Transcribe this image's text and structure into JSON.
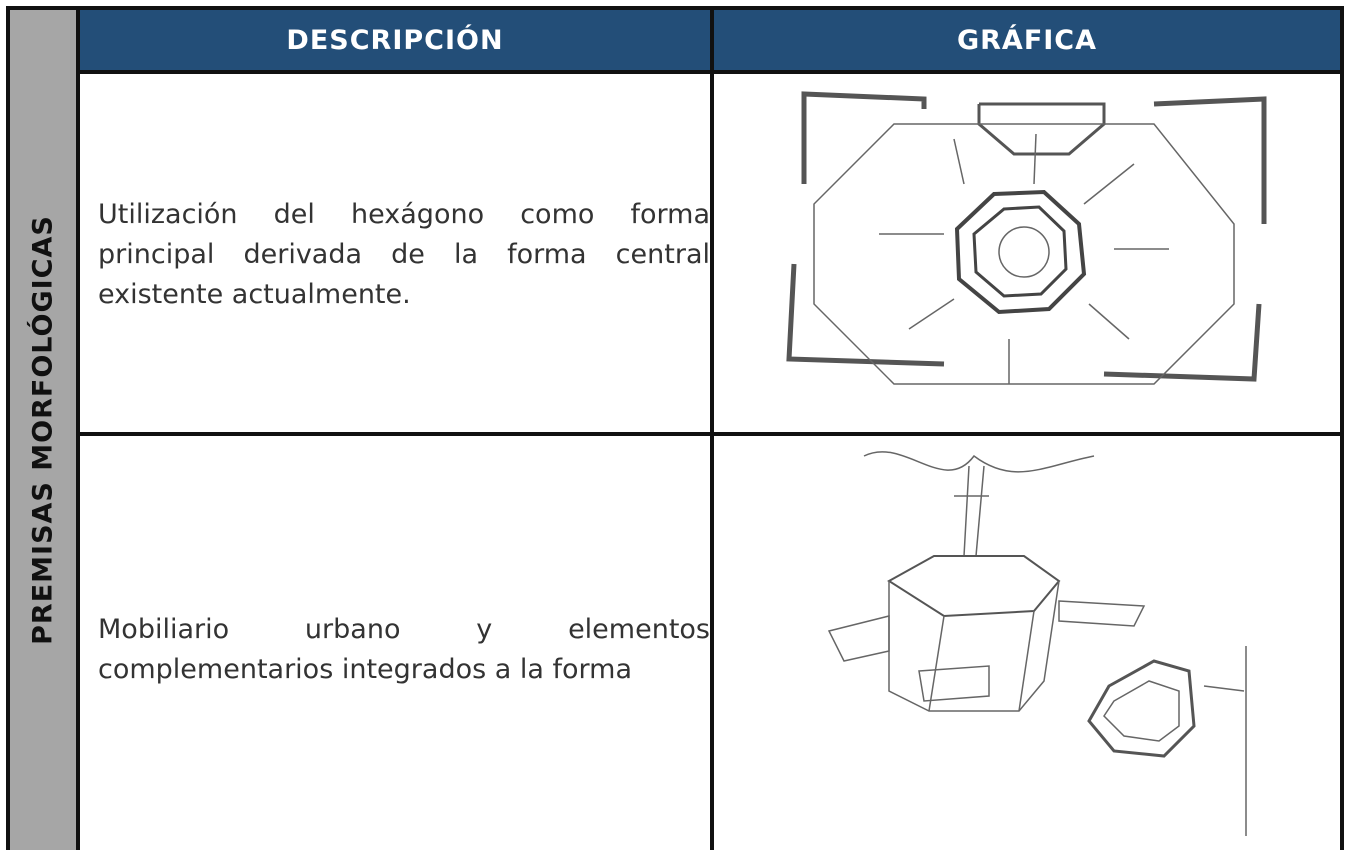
{
  "side_label": "PREMISAS MORFOLÓGICAS",
  "table": {
    "headers": [
      "DESCRIPCIÓN",
      "GRÁFICA"
    ],
    "rows": [
      [
        "Utilización del hexágono como forma principal derivada de la forma central existente actualmente."
      ],
      [
        "Mobiliario urbano y elementos complementarios integrados a la forma"
      ]
    ]
  }
}
